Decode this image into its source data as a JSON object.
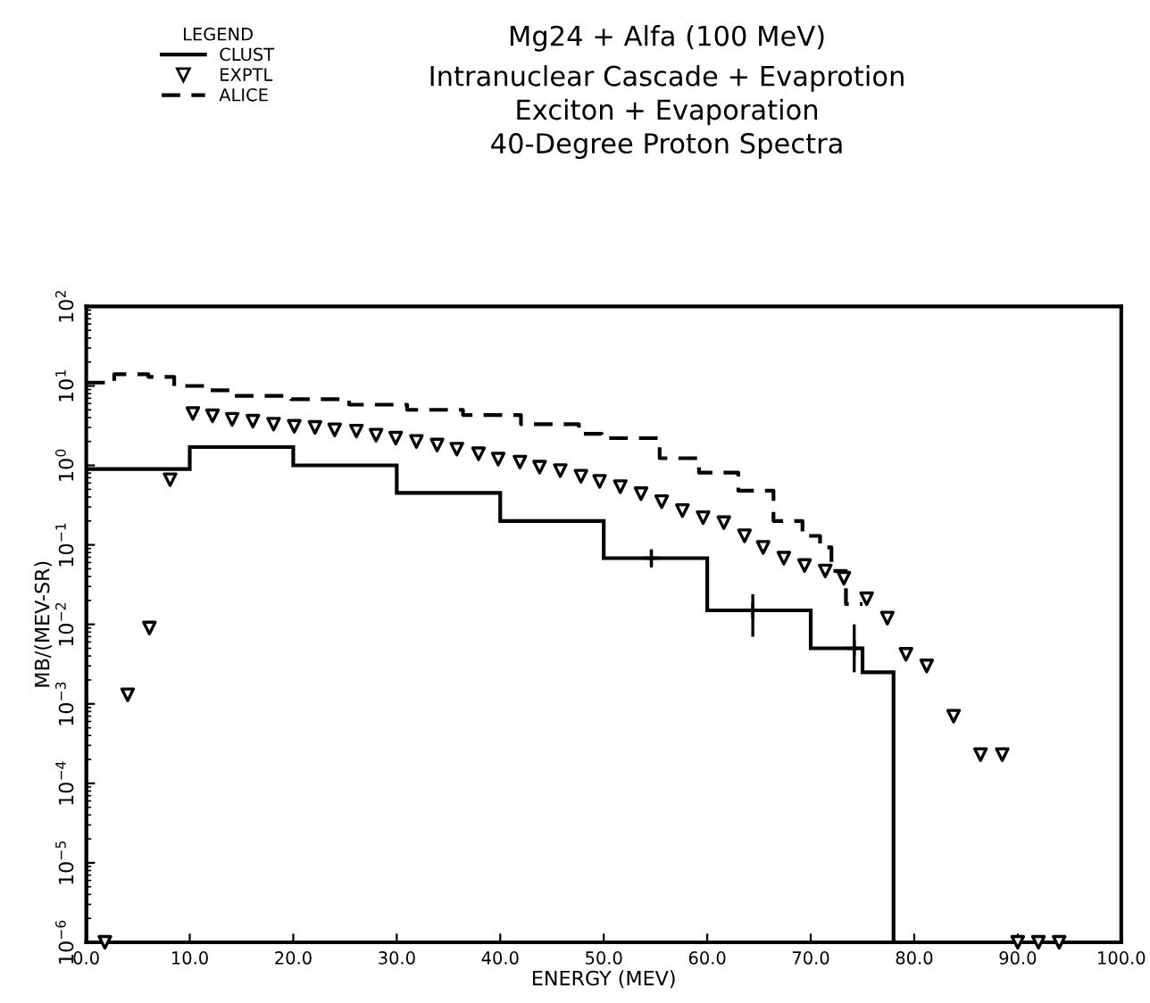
{
  "chart_data": {
    "type": "step",
    "title": "Mg24 + Alfa (100 MeV)",
    "subtitle": "Intranuclear Cascade + Evaprotion\nExciton + Evaporation\n40-Degree Proton Spectra",
    "xlabel": "ENERGY (MEV)",
    "ylabel": "MB/(MEV-SR)",
    "legend_title": "LEGEND",
    "log": "y",
    "legend": "top left",
    "xlim": [
      0,
      100
    ],
    "xticks": [
      {
        "value": 0,
        "label": "0.0"
      },
      {
        "value": 10,
        "label": "10.0"
      },
      {
        "value": 20,
        "label": "20.0"
      },
      {
        "value": 30,
        "label": "30.0"
      },
      {
        "value": 40,
        "label": "40.0"
      },
      {
        "value": 50,
        "label": "50.0"
      },
      {
        "value": 60,
        "label": "60.0"
      },
      {
        "value": 70,
        "label": "70.0"
      },
      {
        "value": 80,
        "label": "80.0"
      },
      {
        "value": 90,
        "label": "90.0"
      },
      {
        "value": 100,
        "label": "100.0"
      }
    ],
    "ylim": [
      1e-06,
      100
    ],
    "yticks": [
      {
        "value": 1e-06,
        "label": "10$^{−6}$"
      },
      {
        "value": 1e-05,
        "label": "10$^{−5}$"
      },
      {
        "value": 0.0001,
        "label": "10$^{−4}$"
      },
      {
        "value": 0.001,
        "label": "10$^{−3}$"
      },
      {
        "value": 0.01,
        "label": "10$^{−2}$"
      },
      {
        "value": 0.1,
        "label": "10$^{−1}$"
      },
      {
        "value": 1,
        "label": "10$^{0}$"
      },
      {
        "value": 10,
        "label": "10$^{1}$"
      },
      {
        "value": 100,
        "label": "10$^{2}$"
      }
    ],
    "series": [
      {
        "name": "CLUST",
        "type": "histogram",
        "color": "#000000",
        "line_style": "solid",
        "bins": [
          0,
          10,
          20,
          30,
          40,
          50,
          60,
          70,
          75,
          78
        ],
        "values": [
          0.9,
          1.7,
          1.0,
          0.45,
          0.2,
          0.068,
          0.015,
          0.005,
          0.0025
        ]
      },
      {
        "type": "scatter",
        "color": "#000000",
        "marker": "cross",
        "x": [
          54.6,
          64.4,
          74.2
        ],
        "values": [
          0.068,
          0.015,
          0.005
        ],
        "errors": [
          [
            0.052,
            0.088
          ],
          [
            0.007,
            0.024
          ],
          [
            0.0025,
            0.01
          ]
        ]
      },
      {
        "name": "EXPTL",
        "type": "scatter",
        "color": "#000000",
        "marker": "triangle",
        "x": [
          1.8,
          4.0,
          6.1,
          8.1,
          10.3,
          12.2,
          14.1,
          16.1,
          18.1,
          20.1,
          22.1,
          24.0,
          26.1,
          28.0,
          29.9,
          31.9,
          33.9,
          35.8,
          37.9,
          39.8,
          41.9,
          43.8,
          45.8,
          47.8,
          49.6,
          51.6,
          53.6,
          55.6,
          57.6,
          59.6,
          61.6,
          63.6,
          65.4,
          67.4,
          69.4,
          71.4,
          73.2,
          75.4,
          77.4,
          79.2,
          81.2,
          83.8,
          86.4,
          88.5,
          90.0,
          92.0,
          94.0
        ],
        "values": [
          1e-06,
          0.0013,
          0.009,
          0.66,
          4.5,
          4.2,
          3.8,
          3.6,
          3.3,
          3.1,
          3.0,
          2.8,
          2.7,
          2.4,
          2.2,
          2.0,
          1.8,
          1.6,
          1.4,
          1.2,
          1.1,
          0.95,
          0.86,
          0.73,
          0.63,
          0.54,
          0.44,
          0.35,
          0.27,
          0.22,
          0.19,
          0.13,
          0.093,
          0.068,
          0.055,
          0.047,
          0.038,
          0.021,
          0.012,
          0.0042,
          0.003,
          0.0007,
          0.00023,
          0.00023,
          1e-06,
          1e-06,
          1e-06
        ]
      },
      {
        "name": "ALICE",
        "color": "#000000",
        "line_style": "dashed",
        "x": [
          0,
          2.7,
          6,
          8.5,
          11.5,
          14.3,
          19.8,
          25.4,
          31,
          36.4,
          42,
          47.6,
          49.8,
          55.4,
          59.2,
          63,
          66.4,
          69.2,
          70.9,
          72,
          73.4,
          75
        ],
        "values": [
          11,
          14,
          13,
          10,
          8.8,
          7.5,
          6.8,
          5.8,
          5.0,
          4.3,
          3.3,
          2.5,
          2.2,
          1.23,
          0.81,
          0.48,
          0.2,
          0.13,
          0.093,
          0.047,
          0.018,
          0.018
        ]
      }
    ]
  }
}
